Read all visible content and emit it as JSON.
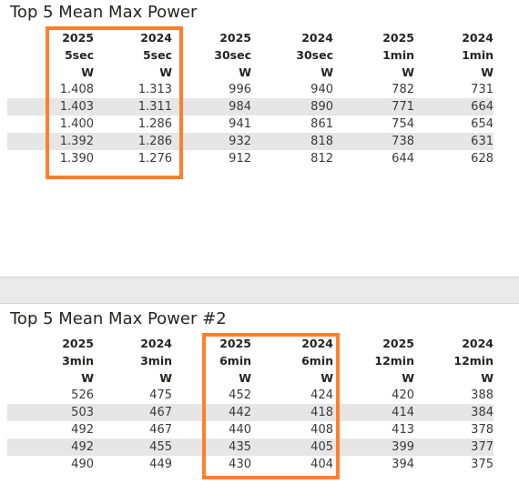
{
  "tables": [
    {
      "title": "Top 5 Mean Max Power",
      "columns": [
        {
          "year": "2025",
          "duration": "5sec",
          "unit": "W"
        },
        {
          "year": "2024",
          "duration": "5sec",
          "unit": "W"
        },
        {
          "year": "2025",
          "duration": "30sec",
          "unit": "W"
        },
        {
          "year": "2024",
          "duration": "30sec",
          "unit": "W"
        },
        {
          "year": "2025",
          "duration": "1min",
          "unit": "W"
        },
        {
          "year": "2024",
          "duration": "1min",
          "unit": "W"
        }
      ],
      "rows": [
        [
          "1.408",
          "1.313",
          "996",
          "940",
          "782",
          "731"
        ],
        [
          "1.403",
          "1.311",
          "984",
          "890",
          "771",
          "664"
        ],
        [
          "1.400",
          "1.286",
          "941",
          "861",
          "754",
          "654"
        ],
        [
          "1.392",
          "1.286",
          "932",
          "818",
          "738",
          "631"
        ],
        [
          "1.390",
          "1.276",
          "912",
          "812",
          "644",
          "628"
        ]
      ],
      "highlight": {
        "color": "#ff7f2a",
        "columns": [
          0,
          1
        ]
      }
    },
    {
      "title": "Top 5 Mean Max Power #2",
      "columns": [
        {
          "year": "2025",
          "duration": "3min",
          "unit": "W"
        },
        {
          "year": "2024",
          "duration": "3min",
          "unit": "W"
        },
        {
          "year": "2025",
          "duration": "6min",
          "unit": "W"
        },
        {
          "year": "2024",
          "duration": "6min",
          "unit": "W"
        },
        {
          "year": "2025",
          "duration": "12min",
          "unit": "W"
        },
        {
          "year": "2024",
          "duration": "12min",
          "unit": "W"
        }
      ],
      "rows": [
        [
          "526",
          "475",
          "452",
          "424",
          "420",
          "388"
        ],
        [
          "503",
          "467",
          "442",
          "418",
          "414",
          "384"
        ],
        [
          "492",
          "467",
          "440",
          "408",
          "413",
          "378"
        ],
        [
          "492",
          "455",
          "435",
          "405",
          "399",
          "377"
        ],
        [
          "490",
          "449",
          "430",
          "404",
          "394",
          "375"
        ]
      ],
      "highlight": {
        "color": "#ff7f2a",
        "columns": [
          2,
          3
        ]
      }
    }
  ]
}
